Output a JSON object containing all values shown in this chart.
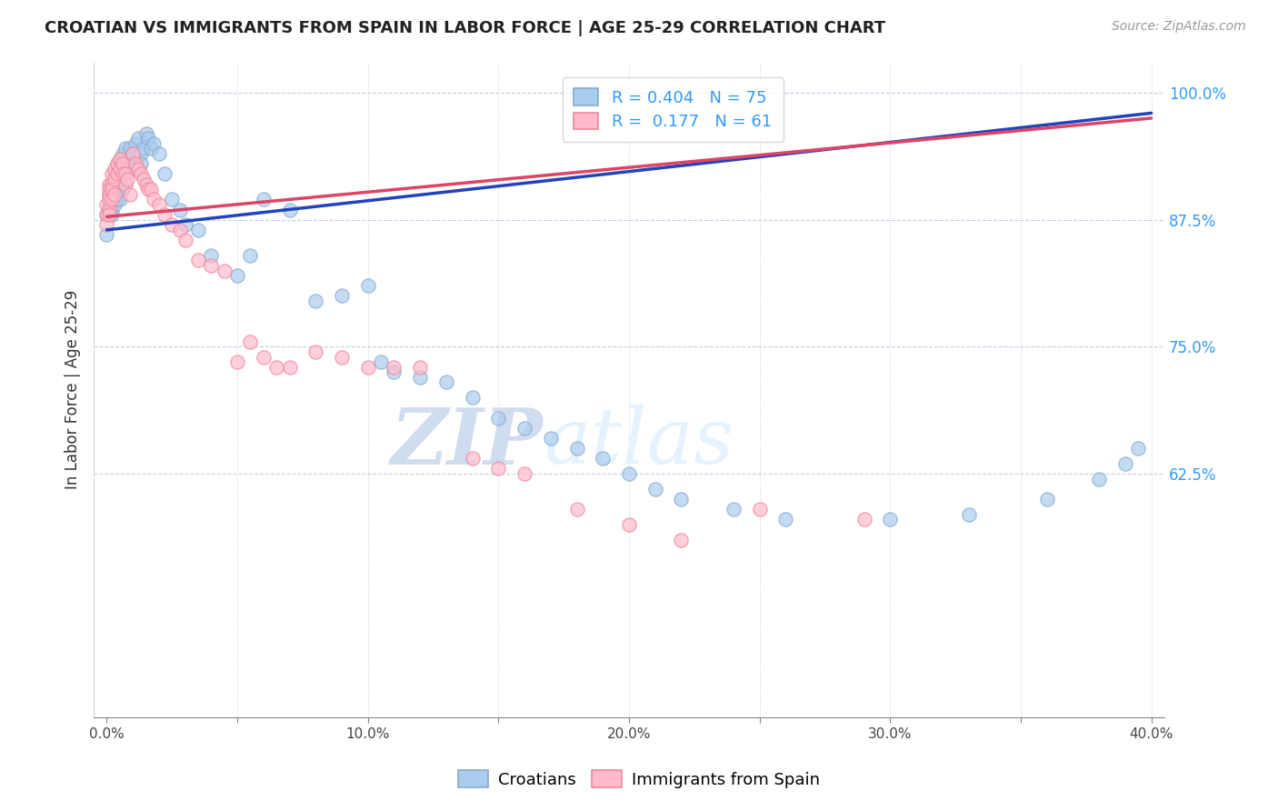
{
  "title": "CROATIAN VS IMMIGRANTS FROM SPAIN IN LABOR FORCE | AGE 25-29 CORRELATION CHART",
  "source": "Source: ZipAtlas.com",
  "ylabel": "In Labor Force | Age 25-29",
  "watermark_zip": "ZIP",
  "watermark_atlas": "atlas",
  "blue_R": 0.404,
  "blue_N": 75,
  "pink_R": 0.177,
  "pink_N": 61,
  "xlim": [
    -0.005,
    0.405
  ],
  "ylim": [
    0.385,
    1.03
  ],
  "yticks": [
    0.625,
    0.75,
    0.875,
    1.0
  ],
  "ytick_labels": [
    "62.5%",
    "75.0%",
    "87.5%",
    "100.0%"
  ],
  "xticks": [
    0.0,
    0.05,
    0.1,
    0.15,
    0.2,
    0.25,
    0.3,
    0.35,
    0.4
  ],
  "xtick_labels": [
    "0.0%",
    "",
    "10.0%",
    "",
    "20.0%",
    "",
    "30.0%",
    "",
    "40.0%"
  ],
  "blue_scatter_color": "#aaccee",
  "blue_edge_color": "#88aacc",
  "pink_scatter_color": "#ffbbcc",
  "pink_edge_color": "#ee8899",
  "blue_line_color": "#2244bb",
  "pink_line_color": "#dd4466",
  "legend_label_blue": "Croatians",
  "legend_label_pink": "Immigrants from Spain",
  "blue_points_x": [
    0.0,
    0.0,
    0.001,
    0.001,
    0.001,
    0.002,
    0.002,
    0.002,
    0.002,
    0.003,
    0.003,
    0.003,
    0.003,
    0.004,
    0.004,
    0.004,
    0.005,
    0.005,
    0.005,
    0.005,
    0.006,
    0.006,
    0.006,
    0.007,
    0.007,
    0.008,
    0.009,
    0.009,
    0.009,
    0.01,
    0.01,
    0.011,
    0.012,
    0.013,
    0.013,
    0.014,
    0.015,
    0.016,
    0.017,
    0.018,
    0.02,
    0.022,
    0.025,
    0.028,
    0.03,
    0.035,
    0.04,
    0.05,
    0.055,
    0.06,
    0.07,
    0.08,
    0.09,
    0.1,
    0.105,
    0.11,
    0.12,
    0.13,
    0.14,
    0.15,
    0.16,
    0.17,
    0.18,
    0.19,
    0.2,
    0.21,
    0.22,
    0.24,
    0.26,
    0.3,
    0.33,
    0.36,
    0.38,
    0.39,
    0.395
  ],
  "blue_points_y": [
    0.88,
    0.86,
    0.9,
    0.89,
    0.88,
    0.91,
    0.895,
    0.885,
    0.88,
    0.92,
    0.905,
    0.9,
    0.89,
    0.93,
    0.91,
    0.895,
    0.935,
    0.915,
    0.905,
    0.895,
    0.94,
    0.92,
    0.905,
    0.945,
    0.925,
    0.93,
    0.945,
    0.935,
    0.925,
    0.94,
    0.93,
    0.95,
    0.955,
    0.94,
    0.93,
    0.945,
    0.96,
    0.955,
    0.945,
    0.95,
    0.94,
    0.92,
    0.895,
    0.885,
    0.87,
    0.865,
    0.84,
    0.82,
    0.84,
    0.895,
    0.885,
    0.795,
    0.8,
    0.81,
    0.735,
    0.725,
    0.72,
    0.715,
    0.7,
    0.68,
    0.67,
    0.66,
    0.65,
    0.64,
    0.625,
    0.61,
    0.6,
    0.59,
    0.58,
    0.58,
    0.585,
    0.6,
    0.62,
    0.635,
    0.65
  ],
  "pink_points_x": [
    0.0,
    0.0,
    0.0,
    0.001,
    0.001,
    0.001,
    0.001,
    0.001,
    0.001,
    0.002,
    0.002,
    0.002,
    0.002,
    0.003,
    0.003,
    0.003,
    0.004,
    0.004,
    0.005,
    0.005,
    0.006,
    0.006,
    0.007,
    0.007,
    0.008,
    0.009,
    0.01,
    0.011,
    0.012,
    0.013,
    0.014,
    0.015,
    0.016,
    0.017,
    0.018,
    0.02,
    0.022,
    0.025,
    0.028,
    0.03,
    0.035,
    0.04,
    0.045,
    0.05,
    0.055,
    0.06,
    0.065,
    0.07,
    0.08,
    0.09,
    0.1,
    0.11,
    0.12,
    0.14,
    0.15,
    0.16,
    0.18,
    0.2,
    0.22,
    0.25,
    0.29
  ],
  "pink_points_y": [
    0.89,
    0.88,
    0.87,
    0.91,
    0.905,
    0.9,
    0.895,
    0.885,
    0.88,
    0.92,
    0.91,
    0.905,
    0.895,
    0.925,
    0.915,
    0.9,
    0.93,
    0.92,
    0.935,
    0.925,
    0.93,
    0.92,
    0.92,
    0.91,
    0.915,
    0.9,
    0.94,
    0.93,
    0.925,
    0.92,
    0.915,
    0.91,
    0.905,
    0.905,
    0.895,
    0.89,
    0.88,
    0.87,
    0.865,
    0.855,
    0.835,
    0.83,
    0.825,
    0.735,
    0.755,
    0.74,
    0.73,
    0.73,
    0.745,
    0.74,
    0.73,
    0.73,
    0.73,
    0.64,
    0.63,
    0.625,
    0.59,
    0.575,
    0.56,
    0.59,
    0.58
  ],
  "blue_trend_x0": 0.0,
  "blue_trend_y0": 0.865,
  "blue_trend_x1": 0.4,
  "blue_trend_y1": 0.98,
  "pink_trend_x0": 0.0,
  "pink_trend_y0": 0.878,
  "pink_trend_x1": 0.4,
  "pink_trend_y1": 0.975
}
